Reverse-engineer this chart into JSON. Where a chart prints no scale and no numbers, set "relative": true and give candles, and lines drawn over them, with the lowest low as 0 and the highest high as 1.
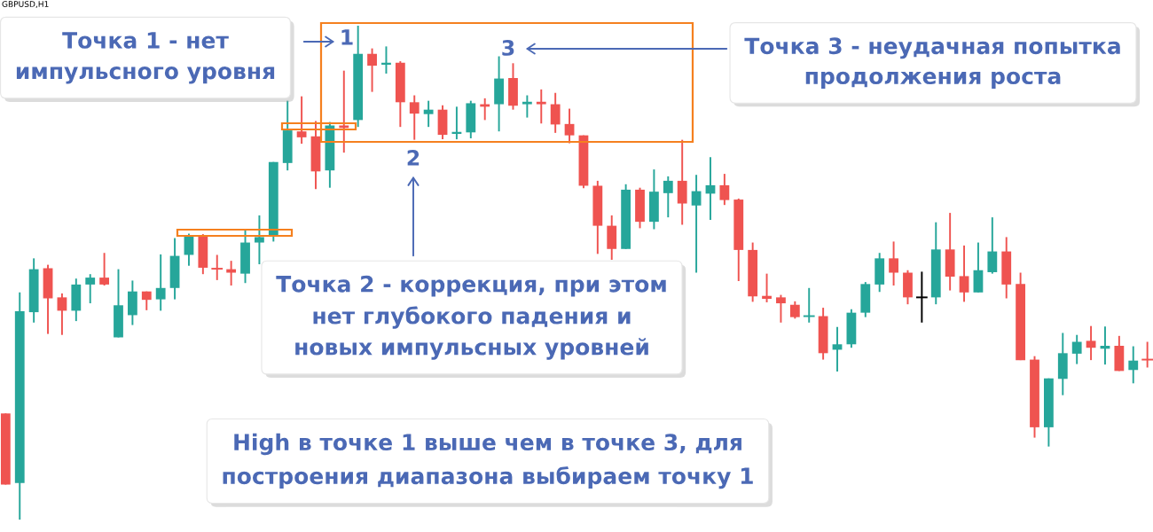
{
  "chart_data": {
    "type": "candlestick",
    "relative": true,
    "title": "GBPUSD,H1",
    "annotations": [
      "Точка 1 - нет\nимпульсного уровня",
      "1",
      "3",
      "Точка 3 - неудачная попытка\nпродолжения роста",
      "2",
      "Точка 2 - коррекция, при этом\nнет глубокого падения и\nновых импульсных уровней",
      "High в точке 1 выше чем в точке 3, для\nпостроения диапазона выбираем точку 1"
    ],
    "categories": [
      null,
      null,
      null,
      null,
      null,
      null,
      null,
      null,
      null,
      null,
      null,
      null,
      null,
      null,
      null,
      null,
      null,
      null,
      null,
      null,
      null,
      null,
      null,
      null,
      null,
      null,
      null,
      null,
      null,
      null,
      null,
      null,
      null,
      null,
      null,
      null,
      null,
      null,
      null,
      null,
      null,
      null,
      null,
      null,
      null,
      null,
      null,
      null,
      null,
      null,
      null,
      null,
      null,
      null,
      null,
      null,
      null,
      null,
      null,
      null,
      null,
      null,
      null,
      null,
      null,
      null,
      null,
      null,
      null,
      null,
      null,
      null,
      null,
      null,
      null,
      null,
      null,
      null,
      null,
      null,
      null,
      null
    ],
    "ohlc": [
      [
        0.215,
        0.215,
        0.071,
        0.071
      ],
      [
        0.074,
        0.46,
        0,
        0.422
      ],
      [
        0.42,
        0.529,
        0.399,
        0.507
      ],
      [
        0.509,
        0.516,
        0.376,
        0.448
      ],
      [
        0.45,
        0.458,
        0.374,
        0.423
      ],
      [
        0.423,
        0.488,
        0.402,
        0.476
      ],
      [
        0.476,
        0.497,
        0.438,
        0.49
      ],
      [
        0.49,
        0.54,
        0.474,
        0.476
      ],
      [
        0.369,
        0.507,
        0.369,
        0.434
      ],
      [
        0.414,
        0.484,
        0.394,
        0.462
      ],
      [
        0.462,
        0.462,
        0.424,
        0.445
      ],
      [
        0.446,
        0.537,
        0.423,
        0.469
      ],
      [
        0.469,
        0.57,
        0.446,
        0.534
      ],
      [
        0.536,
        0.579,
        0.514,
        0.575
      ],
      [
        0.573,
        0.578,
        0.497,
        0.51
      ],
      [
        0.508,
        0.536,
        0.485,
        0.508
      ],
      [
        0.507,
        0.524,
        0.474,
        0.5
      ],
      [
        0.498,
        0.588,
        0.479,
        0.561
      ],
      [
        0.561,
        0.616,
        0.517,
        0.572
      ],
      [
        0.576,
        0.724,
        0.563,
        0.724
      ],
      [
        0.722,
        0.848,
        0.707,
        0.788
      ],
      [
        0.786,
        0.857,
        0.761,
        0.774
      ],
      [
        0.776,
        0.807,
        0.669,
        0.705
      ],
      [
        0.707,
        0.805,
        0.672,
        0.798
      ],
      [
        0.798,
        0.909,
        0.743,
        0.793
      ],
      [
        0.809,
        1,
        0.795,
        0.943
      ],
      [
        0.943,
        0.954,
        0.866,
        0.919
      ],
      [
        0.921,
        0.958,
        0.903,
        0.925
      ],
      [
        0.925,
        0.928,
        0.795,
        0.845
      ],
      [
        0.845,
        0.859,
        0.769,
        0.822
      ],
      [
        0.821,
        0.848,
        0.795,
        0.83
      ],
      [
        0.83,
        0.839,
        0.77,
        0.779
      ],
      [
        0.781,
        0.836,
        0.77,
        0.785
      ],
      [
        0.784,
        0.848,
        0.772,
        0.843
      ],
      [
        0.841,
        0.853,
        0.809,
        0.836
      ],
      [
        0.841,
        0.938,
        0.786,
        0.893
      ],
      [
        0.894,
        0.924,
        0.83,
        0.838
      ],
      [
        0.841,
        0.859,
        0.814,
        0.846
      ],
      [
        0.846,
        0.871,
        0.802,
        0.841
      ],
      [
        0.841,
        0.864,
        0.783,
        0.8
      ],
      [
        0.801,
        0.832,
        0.762,
        0.778
      ],
      [
        0.778,
        0.778,
        0.671,
        0.676
      ],
      [
        0.676,
        0.686,
        0.538,
        0.595
      ],
      [
        0.595,
        0.616,
        0.526,
        0.548
      ],
      [
        0.548,
        0.679,
        0.548,
        0.668
      ],
      [
        0.668,
        0.672,
        0.59,
        0.603
      ],
      [
        0.603,
        0.709,
        0.588,
        0.664
      ],
      [
        0.661,
        0.695,
        0.612,
        0.686
      ],
      [
        0.686,
        0.769,
        0.597,
        0.64
      ],
      [
        0.636,
        0.698,
        0.5,
        0.665
      ],
      [
        0.66,
        0.734,
        0.607,
        0.677
      ],
      [
        0.677,
        0.7,
        0.637,
        0.647
      ],
      [
        0.648,
        0.65,
        0.483,
        0.546
      ],
      [
        0.546,
        0.561,
        0.441,
        0.452
      ],
      [
        0.453,
        0.498,
        0.44,
        0.447
      ],
      [
        0.45,
        0.455,
        0.399,
        0.438
      ],
      [
        0.435,
        0.442,
        0.407,
        0.41
      ],
      [
        0.412,
        0.469,
        0.399,
        0.412
      ],
      [
        0.412,
        0.429,
        0.324,
        0.337
      ],
      [
        0.344,
        0.39,
        0.3,
        0.355
      ],
      [
        0.355,
        0.426,
        0.348,
        0.419
      ],
      [
        0.419,
        0.481,
        0.41,
        0.477
      ],
      [
        0.476,
        0.54,
        0.461,
        0.529
      ],
      [
        0.529,
        0.563,
        0.474,
        0.5
      ],
      [
        0.5,
        0.505,
        0.436,
        0.45
      ],
      [
        0.45,
        0.502,
        0.399,
        0.45
      ],
      [
        0.45,
        0.602,
        0.436,
        0.547
      ],
      [
        0.547,
        0.621,
        0.464,
        0.492
      ],
      [
        0.493,
        0.555,
        0.441,
        0.46
      ],
      [
        0.46,
        0.561,
        0.46,
        0.505
      ],
      [
        0.501,
        0.612,
        0.498,
        0.543
      ],
      [
        0.543,
        0.572,
        0.448,
        0.476
      ],
      [
        0.477,
        0.5,
        0.323,
        0.323
      ],
      [
        0.324,
        0.331,
        0.166,
        0.187
      ],
      [
        0.187,
        0.286,
        0.148,
        0.286
      ],
      [
        0.285,
        0.378,
        0.252,
        0.337
      ],
      [
        0.336,
        0.374,
        0.315,
        0.36
      ],
      [
        0.362,
        0.392,
        0.323,
        0.348
      ],
      [
        0.346,
        0.391,
        0.314,
        0.352
      ],
      [
        0.352,
        0.372,
        0.301,
        0.301
      ],
      [
        0.303,
        0.351,
        0.276,
        0.322
      ],
      [
        0.324,
        0.36,
        0.308,
        0.324
      ]
    ],
    "colors": [
      "#ef5350",
      "#26a69a",
      "#26a69a",
      "#ef5350",
      "#ef5350",
      "#26a69a",
      "#26a69a",
      "#ef5350",
      "#26a69a",
      "#26a69a",
      "#ef5350",
      "#26a69a",
      "#26a69a",
      "#26a69a",
      "#ef5350",
      "#ef5350",
      "#ef5350",
      "#26a69a",
      "#26a69a",
      "#26a69a",
      "#26a69a",
      "#ef5350",
      "#ef5350",
      "#26a69a",
      "#ef5350",
      "#26a69a",
      "#ef5350",
      "#26a69a",
      "#ef5350",
      "#ef5350",
      "#26a69a",
      "#ef5350",
      "#26a69a",
      "#26a69a",
      "#ef5350",
      "#26a69a",
      "#ef5350",
      "#26a69a",
      "#ef5350",
      "#ef5350",
      "#ef5350",
      "#ef5350",
      "#ef5350",
      "#ef5350",
      "#26a69a",
      "#ef5350",
      "#26a69a",
      "#26a69a",
      "#ef5350",
      "#26a69a",
      "#26a69a",
      "#ef5350",
      "#ef5350",
      "#ef5350",
      "#ef5350",
      "#ef5350",
      "#ef5350",
      "#26a69a",
      "#ef5350",
      "#26a69a",
      "#26a69a",
      "#26a69a",
      "#26a69a",
      "#ef5350",
      "#ef5350",
      "#000000",
      "#26a69a",
      "#ef5350",
      "#ef5350",
      "#26a69a",
      "#26a69a",
      "#ef5350",
      "#ef5350",
      "#ef5350",
      "#26a69a",
      "#26a69a",
      "#26a69a",
      "#ef5350",
      "#26a69a",
      "#ef5350",
      "#26a69a",
      "#ef5350"
    ]
  }
}
